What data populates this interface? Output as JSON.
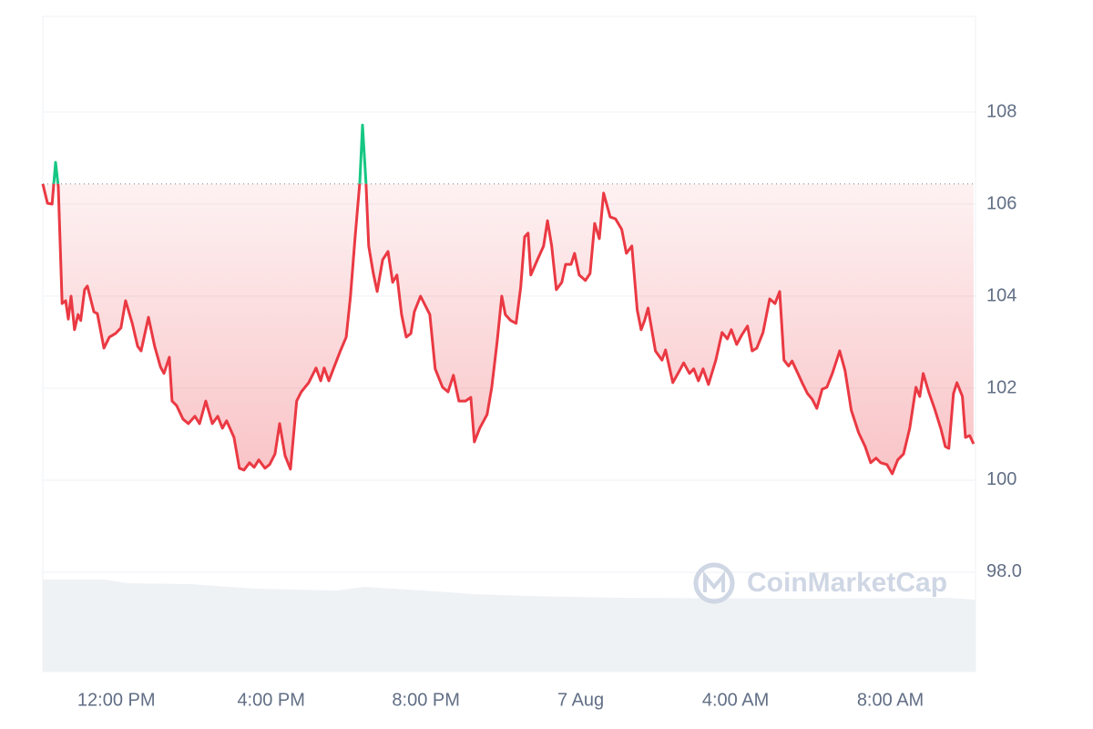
{
  "chart_data": {
    "type": "line",
    "watermark": "CoinMarketCap",
    "baseline": 106.44,
    "up_color": "#16c784",
    "down_color": "#ea3943",
    "grid": true,
    "xlim": [
      10.1,
      34.2
    ],
    "ylim": [
      95.84,
      110.08
    ],
    "xticks": [
      {
        "value": 12,
        "label": "12:00 PM"
      },
      {
        "value": 16,
        "label": "4:00 PM"
      },
      {
        "value": 20,
        "label": "8:00 PM"
      },
      {
        "value": 24,
        "label": "7 Aug"
      },
      {
        "value": 28,
        "label": "4:00 AM"
      },
      {
        "value": 32,
        "label": "8:00 AM"
      }
    ],
    "yticks": [
      {
        "value": 98,
        "label": "98.0"
      },
      100,
      102,
      104,
      106,
      108
    ],
    "x": [
      10.1,
      10.22,
      10.34,
      10.43,
      10.5,
      10.6,
      10.69,
      10.76,
      10.83,
      10.92,
      11.01,
      11.08,
      11.18,
      11.25,
      11.42,
      11.51,
      11.68,
      11.82,
      11.98,
      12.12,
      12.24,
      12.41,
      12.55,
      12.64,
      12.83,
      12.99,
      13.14,
      13.23,
      13.37,
      13.44,
      13.56,
      13.72,
      13.86,
      14.03,
      14.15,
      14.31,
      14.48,
      14.62,
      14.74,
      14.85,
      15.04,
      15.18,
      15.3,
      15.44,
      15.56,
      15.68,
      15.84,
      15.96,
      16.1,
      16.22,
      16.36,
      16.5,
      16.66,
      16.78,
      16.97,
      17.16,
      17.28,
      17.37,
      17.49,
      17.65,
      17.79,
      17.94,
      18.05,
      18.17,
      18.29,
      18.36,
      18.45,
      18.52,
      18.64,
      18.74,
      18.88,
      19.02,
      19.14,
      19.25,
      19.37,
      19.49,
      19.61,
      19.7,
      19.86,
      20.1,
      20.24,
      20.43,
      20.57,
      20.71,
      20.85,
      21.02,
      21.16,
      21.25,
      21.39,
      21.58,
      21.7,
      21.84,
      21.96,
      22.05,
      22.19,
      22.33,
      22.45,
      22.55,
      22.64,
      22.71,
      22.88,
      23.04,
      23.14,
      23.25,
      23.37,
      23.51,
      23.61,
      23.75,
      23.84,
      23.96,
      24.12,
      24.24,
      24.36,
      24.48,
      24.59,
      24.76,
      24.9,
      25.06,
      25.18,
      25.32,
      25.46,
      25.56,
      25.65,
      25.74,
      25.93,
      26.1,
      26.19,
      26.38,
      26.55,
      26.66,
      26.81,
      26.92,
      27.04,
      27.16,
      27.3,
      27.49,
      27.65,
      27.79,
      27.89,
      28.03,
      28.17,
      28.31,
      28.43,
      28.55,
      28.71,
      28.88,
      29.02,
      29.14,
      29.25,
      29.37,
      29.46,
      29.61,
      29.72,
      29.86,
      29.98,
      30.1,
      30.24,
      30.36,
      30.5,
      30.69,
      30.83,
      30.99,
      31.18,
      31.35,
      31.49,
      31.63,
      31.75,
      31.91,
      32.05,
      32.19,
      32.34,
      32.5,
      32.66,
      32.76,
      32.85,
      32.99,
      33.14,
      33.3,
      33.42,
      33.51,
      33.63,
      33.72,
      33.86,
      33.94,
      34.05,
      34.15
    ],
    "values": [
      106.44,
      106.02,
      106.0,
      106.91,
      106.38,
      103.84,
      103.9,
      103.5,
      104.0,
      103.27,
      103.6,
      103.47,
      104.14,
      104.22,
      103.66,
      103.62,
      102.87,
      103.11,
      103.19,
      103.31,
      103.9,
      103.41,
      102.91,
      102.81,
      103.54,
      102.91,
      102.46,
      102.32,
      102.67,
      101.72,
      101.62,
      101.33,
      101.23,
      101.39,
      101.23,
      101.72,
      101.23,
      101.39,
      101.13,
      101.29,
      100.93,
      100.26,
      100.22,
      100.38,
      100.28,
      100.44,
      100.26,
      100.34,
      100.57,
      101.23,
      100.53,
      100.24,
      101.72,
      101.92,
      102.12,
      102.44,
      102.16,
      102.44,
      102.16,
      102.51,
      102.81,
      103.11,
      104.0,
      105.29,
      106.47,
      107.72,
      106.47,
      105.09,
      104.49,
      104.1,
      104.79,
      104.97,
      104.3,
      104.46,
      103.6,
      103.11,
      103.19,
      103.66,
      104.0,
      103.6,
      102.42,
      102.02,
      101.92,
      102.28,
      101.72,
      101.72,
      101.8,
      100.83,
      101.13,
      101.43,
      102.02,
      103.01,
      104.0,
      103.6,
      103.47,
      103.41,
      104.2,
      105.29,
      105.37,
      104.46,
      104.79,
      105.09,
      105.64,
      105.09,
      104.14,
      104.3,
      104.69,
      104.69,
      104.93,
      104.46,
      104.34,
      104.49,
      105.58,
      105.25,
      106.24,
      105.72,
      105.68,
      105.45,
      104.93,
      105.09,
      103.7,
      103.27,
      103.47,
      103.74,
      102.81,
      102.61,
      102.83,
      102.12,
      102.38,
      102.55,
      102.32,
      102.42,
      102.16,
      102.42,
      102.08,
      102.61,
      103.21,
      103.07,
      103.27,
      102.95,
      103.17,
      103.35,
      102.81,
      102.87,
      103.21,
      103.94,
      103.84,
      104.1,
      102.61,
      102.48,
      102.59,
      102.32,
      102.12,
      101.88,
      101.76,
      101.56,
      101.98,
      102.02,
      102.32,
      102.81,
      102.38,
      101.52,
      101.03,
      100.73,
      100.38,
      100.48,
      100.38,
      100.34,
      100.14,
      100.44,
      100.57,
      101.13,
      102.02,
      101.82,
      102.32,
      101.92,
      101.56,
      101.13,
      100.73,
      100.69,
      101.88,
      102.12,
      101.82,
      100.93,
      100.97,
      100.79
    ]
  }
}
